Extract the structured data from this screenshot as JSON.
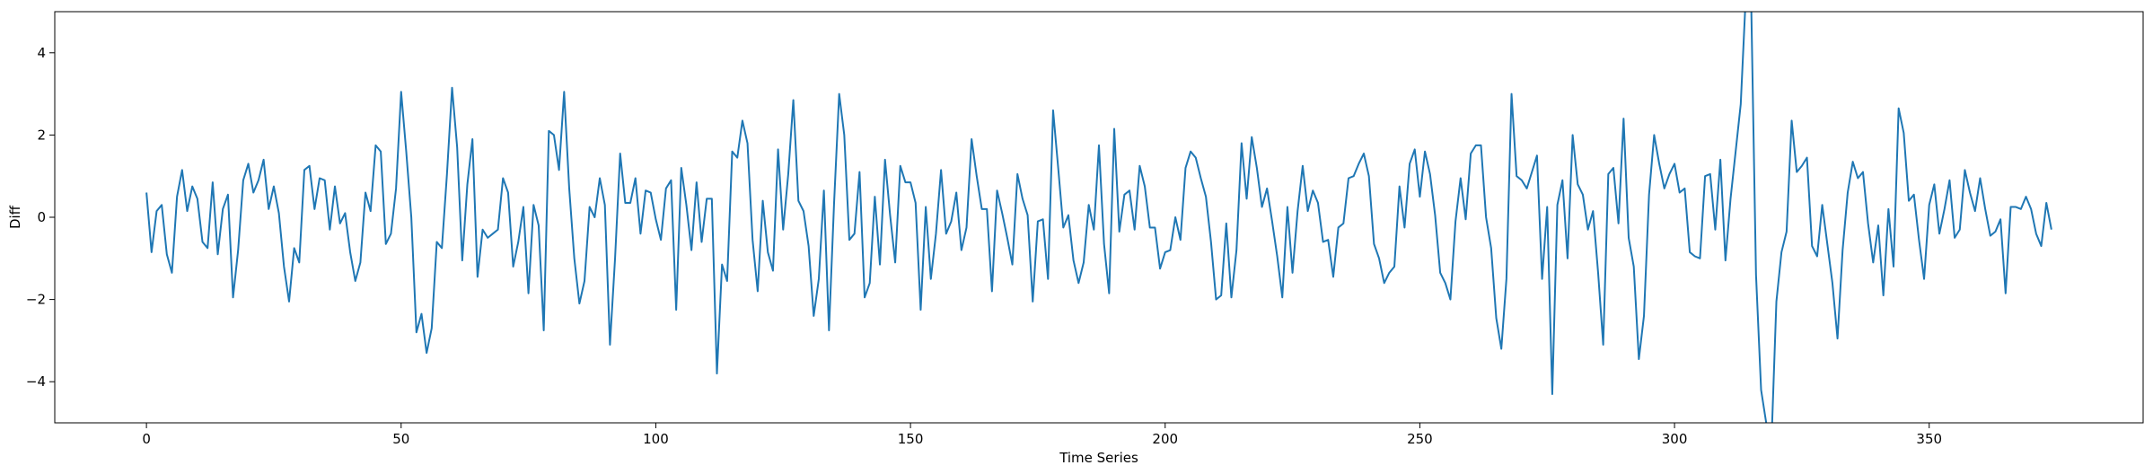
{
  "chart_data": {
    "type": "line",
    "title": "",
    "xlabel": "Time Series",
    "ylabel": "Diff",
    "xlim": [
      -18,
      392
    ],
    "ylim": [
      -5,
      5
    ],
    "xticks": [
      0,
      50,
      100,
      150,
      200,
      250,
      300,
      350
    ],
    "yticks": [
      -4,
      -2,
      0,
      2,
      4
    ],
    "grid": false,
    "legend": "none",
    "line_color": "#1f77b4",
    "series": [
      {
        "x_start": 0,
        "values": [
          0.6,
          -0.85,
          0.15,
          0.3,
          -0.9,
          -1.35,
          0.5,
          1.15,
          0.15,
          0.75,
          0.45,
          -0.6,
          -0.75,
          0.85,
          -0.9,
          0.2,
          0.55,
          -1.95,
          -0.8,
          0.9,
          1.3,
          0.6,
          0.9,
          1.4,
          0.2,
          0.75,
          0.1,
          -1.2,
          -2.05,
          -0.75,
          -1.1,
          1.15,
          1.25,
          0.2,
          0.95,
          0.9,
          -0.3,
          0.75,
          -0.15,
          0.1,
          -0.85,
          -1.55,
          -1.1,
          0.6,
          0.15,
          1.75,
          1.6,
          -0.65,
          -0.4,
          0.7,
          3.05,
          1.6,
          0.0,
          -2.8,
          -2.35,
          -3.3,
          -2.7,
          -0.6,
          -0.75,
          1.05,
          3.15,
          1.7,
          -1.05,
          0.8,
          1.9,
          -1.45,
          -0.3,
          -0.5,
          -0.4,
          -0.3,
          0.95,
          0.6,
          -1.2,
          -0.6,
          0.25,
          -1.85,
          0.3,
          -0.2,
          -2.75,
          2.1,
          2.0,
          1.15,
          3.05,
          0.7,
          -1.0,
          -2.1,
          -1.55,
          0.25,
          0.0,
          0.95,
          0.3,
          -3.1,
          -1.0,
          1.55,
          0.35,
          0.35,
          0.95,
          -0.4,
          0.65,
          0.6,
          -0.05,
          -0.55,
          0.7,
          0.9,
          -2.25,
          1.2,
          0.3,
          -0.8,
          0.85,
          -0.6,
          0.45,
          0.45,
          -3.8,
          -1.15,
          -1.55,
          1.6,
          1.45,
          2.35,
          1.8,
          -0.55,
          -1.8,
          0.4,
          -0.85,
          -1.3,
          1.65,
          -0.3,
          1.05,
          2.85,
          0.4,
          0.15,
          -0.7,
          -2.4,
          -1.5,
          0.65,
          -2.75,
          0.35,
          3.0,
          2.0,
          -0.55,
          -0.4,
          1.1,
          -1.95,
          -1.6,
          0.5,
          -1.15,
          1.4,
          0.05,
          -1.1,
          1.25,
          0.85,
          0.85,
          0.35,
          -2.25,
          0.25,
          -1.5,
          -0.4,
          1.15,
          -0.4,
          -0.1,
          0.6,
          -0.8,
          -0.25,
          1.9,
          1.0,
          0.2,
          0.2,
          -1.8,
          0.65,
          0.1,
          -0.5,
          -1.15,
          1.05,
          0.45,
          0.05,
          -2.05,
          -0.1,
          -0.05,
          -1.5,
          2.6,
          1.2,
          -0.25,
          0.05,
          -1.05,
          -1.6,
          -1.1,
          0.3,
          -0.3,
          1.75,
          -0.65,
          -1.85,
          2.15,
          -0.35,
          0.55,
          0.65,
          -0.3,
          1.25,
          0.75,
          -0.25,
          -0.25,
          -1.25,
          -0.85,
          -0.8,
          0.0,
          -0.55,
          1.2,
          1.6,
          1.45,
          0.95,
          0.5,
          -0.6,
          -2.0,
          -1.9,
          -0.15,
          -1.95,
          -0.8,
          1.8,
          0.45,
          1.95,
          1.2,
          0.25,
          0.7,
          -0.1,
          -0.95,
          -1.95,
          0.25,
          -1.35,
          0.15,
          1.25,
          0.15,
          0.65,
          0.35,
          -0.6,
          -0.55,
          -1.45,
          -0.25,
          -0.15,
          0.95,
          1.0,
          1.3,
          1.55,
          1.0,
          -0.65,
          -1.0,
          -1.6,
          -1.35,
          -1.2,
          0.75,
          -0.25,
          1.3,
          1.65,
          0.5,
          1.6,
          1.05,
          0.05,
          -1.35,
          -1.6,
          -2.0,
          -0.1,
          0.95,
          -0.05,
          1.55,
          1.75,
          1.75,
          0.0,
          -0.75,
          -2.45,
          -3.2,
          -1.5,
          3.0,
          1.0,
          0.9,
          0.7,
          1.1,
          1.5,
          -1.5,
          0.25,
          -4.3,
          0.3,
          0.9,
          -1.0,
          2.0,
          0.8,
          0.55,
          -0.3,
          0.15,
          -1.35,
          -3.1,
          1.05,
          1.2,
          -0.15,
          2.4,
          -0.5,
          -1.2,
          -3.45,
          -2.4,
          0.55,
          2.0,
          1.3,
          0.7,
          1.05,
          1.3,
          0.6,
          0.7,
          -0.85,
          -0.95,
          -1.0,
          1.0,
          1.05,
          -0.3,
          1.4,
          -1.05,
          0.45,
          1.6,
          2.75,
          5.4,
          5.6,
          -1.4,
          -4.2,
          -5.0,
          -5.6,
          -2.05,
          -0.85,
          -0.35,
          2.35,
          1.1,
          1.25,
          1.45,
          -0.7,
          -0.95,
          0.3,
          -0.65,
          -1.6,
          -2.95,
          -0.8,
          0.6,
          1.35,
          0.95,
          1.1,
          -0.15,
          -1.1,
          -0.2,
          -1.9,
          0.2,
          -1.2,
          2.65,
          2.05,
          0.4,
          0.55,
          -0.55,
          -1.5,
          0.3,
          0.8,
          -0.4,
          0.2,
          0.9,
          -0.5,
          -0.3,
          1.15,
          0.6,
          0.15,
          0.95,
          0.2,
          -0.45,
          -0.35,
          -0.05,
          -1.85,
          0.25,
          0.25,
          0.2,
          0.5,
          0.2,
          -0.4,
          -0.7,
          0.35,
          -0.3
        ]
      }
    ]
  }
}
